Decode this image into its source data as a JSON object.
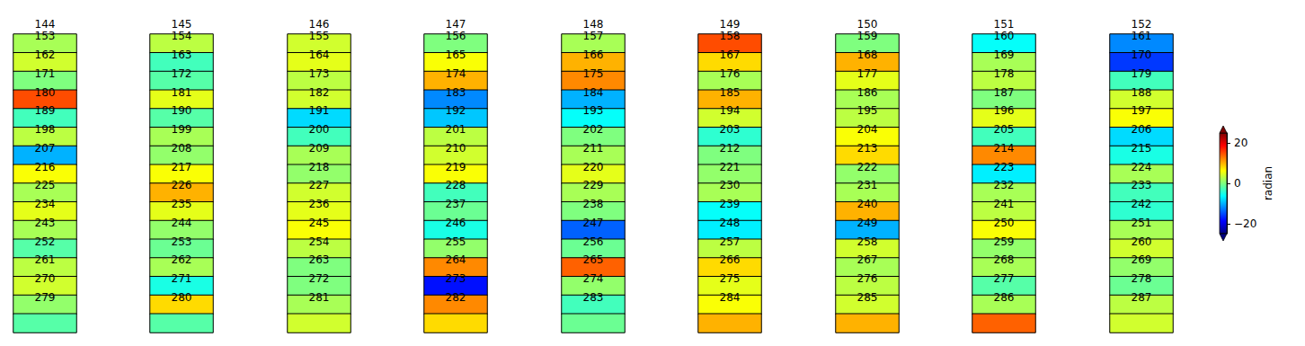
{
  "chart_data": {
    "type": "heatmap",
    "color": "jet",
    "tick_labels": false,
    "panels": [
      {
        "title": "144",
        "band_labels": [
          "153",
          "162",
          "171",
          "180",
          "189",
          "198",
          "207",
          "216",
          "225",
          "234",
          "243",
          "252",
          "261",
          "270",
          "279",
          null
        ],
        "values": [
          2,
          4,
          0,
          15,
          -3,
          3,
          -10,
          6,
          2,
          5,
          2,
          -2,
          3,
          4,
          1,
          -2
        ]
      },
      {
        "title": "145",
        "band_labels": [
          "154",
          "163",
          "172",
          "181",
          "190",
          "199",
          "208",
          "217",
          "226",
          "235",
          "244",
          "253",
          "262",
          "271",
          "280",
          null
        ],
        "values": [
          3,
          -3,
          -2,
          5,
          -2,
          2,
          1,
          6,
          10,
          5,
          1,
          -1,
          2,
          -5,
          8,
          -2
        ]
      },
      {
        "title": "146",
        "band_labels": [
          "155",
          "164",
          "173",
          "182",
          "191",
          "200",
          "209",
          "218",
          "227",
          "236",
          "245",
          "254",
          "263",
          "272",
          "281",
          null
        ],
        "values": [
          4,
          5,
          3,
          4,
          -8,
          -3,
          2,
          1,
          4,
          5,
          6,
          3,
          0,
          0,
          2,
          4
        ]
      },
      {
        "title": "147",
        "band_labels": [
          "156",
          "165",
          "174",
          "183",
          "192",
          "201",
          "210",
          "219",
          "228",
          "237",
          "246",
          "255",
          "264",
          "273",
          "282",
          null
        ],
        "values": [
          0,
          6,
          10,
          -12,
          -9,
          3,
          4,
          6,
          -3,
          -1,
          -5,
          1,
          12,
          -18,
          12,
          8
        ]
      },
      {
        "title": "148",
        "band_labels": [
          "157",
          "166",
          "175",
          "184",
          "193",
          "202",
          "211",
          "220",
          "229",
          "238",
          "247",
          "256",
          "265",
          "274",
          "283",
          null
        ],
        "values": [
          2,
          10,
          12,
          -10,
          -6,
          0,
          2,
          5,
          2,
          0,
          -14,
          -1,
          14,
          1,
          -3,
          -1
        ]
      },
      {
        "title": "149",
        "band_labels": [
          "158",
          "167",
          "176",
          "185",
          "194",
          "203",
          "212",
          "221",
          "230",
          "239",
          "248",
          "257",
          "266",
          "275",
          "284",
          null
        ],
        "values": [
          15,
          8,
          2,
          10,
          4,
          -4,
          0,
          1,
          2,
          -6,
          -7,
          3,
          8,
          5,
          6,
          10
        ]
      },
      {
        "title": "150",
        "band_labels": [
          "159",
          "168",
          "177",
          "186",
          "195",
          "204",
          "213",
          "222",
          "231",
          "240",
          "249",
          "258",
          "267",
          "276",
          "285",
          null
        ],
        "values": [
          0,
          10,
          5,
          2,
          3,
          6,
          8,
          1,
          2,
          10,
          -10,
          4,
          2,
          3,
          4,
          10
        ]
      },
      {
        "title": "151",
        "band_labels": [
          "160",
          "169",
          "178",
          "187",
          "196",
          "205",
          "214",
          "223",
          "232",
          "241",
          "250",
          "259",
          "268",
          "277",
          "286",
          null
        ],
        "values": [
          -6,
          2,
          3,
          0,
          5,
          -3,
          12,
          -7,
          2,
          3,
          6,
          1,
          2,
          -2,
          2,
          14
        ]
      },
      {
        "title": "152",
        "band_labels": [
          "161",
          "170",
          "179",
          "188",
          "197",
          "206",
          "215",
          "224",
          "233",
          "242",
          "251",
          "260",
          "269",
          "278",
          "287",
          null
        ],
        "values": [
          -12,
          -16,
          -3,
          4,
          6,
          -8,
          -5,
          2,
          -3,
          -4,
          2,
          4,
          1,
          -1,
          3,
          4
        ]
      }
    ],
    "colorbar": {
      "label": "radian",
      "range": [
        -25,
        25
      ],
      "ticks": [
        {
          "value": -20,
          "label": "−20"
        },
        0,
        20
      ]
    }
  }
}
